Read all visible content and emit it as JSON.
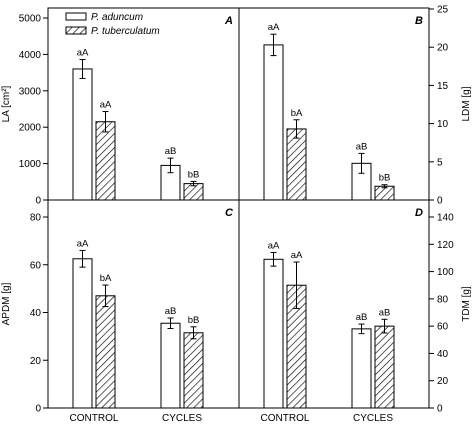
{
  "legend": {
    "open_label": "P. aduncum",
    "hatched_label": "P. tuberculatum"
  },
  "chart_data": [
    {
      "panel": "A",
      "type": "bar",
      "categories": [
        "CONTROL",
        "CYCLES"
      ],
      "ylabel": "LA [cm²]",
      "ylim": [
        0,
        5000
      ],
      "yticks": [
        0,
        1000,
        2000,
        3000,
        4000,
        5000
      ],
      "y_axis_side": "left",
      "series": [
        {
          "name": "P. aduncum",
          "values": [
            3600,
            950
          ],
          "errors": [
            260,
            200
          ],
          "labels": [
            "aA",
            "aB"
          ]
        },
        {
          "name": "P. tuberculatum",
          "values": [
            2150,
            450
          ],
          "errors": [
            280,
            60
          ],
          "labels": [
            "aA",
            "bB"
          ]
        }
      ]
    },
    {
      "panel": "B",
      "type": "bar",
      "categories": [
        "CONTROL",
        "CYCLES"
      ],
      "ylabel": "LDM [g]",
      "ylim": [
        0,
        25
      ],
      "yticks": [
        0,
        5,
        10,
        15,
        20,
        25
      ],
      "y_axis_side": "right",
      "series": [
        {
          "name": "P. aduncum",
          "values": [
            20.3,
            4.8
          ],
          "errors": [
            1.4,
            1.3
          ],
          "labels": [
            "aA",
            "aB"
          ]
        },
        {
          "name": "P. tuberculatum",
          "values": [
            9.3,
            1.8
          ],
          "errors": [
            1.2,
            0.2
          ],
          "labels": [
            "bA",
            "bB"
          ]
        }
      ]
    },
    {
      "panel": "C",
      "type": "bar",
      "categories": [
        "CONTROL",
        "CYCLES"
      ],
      "ylabel": "APDM [g]",
      "ylim": [
        0,
        80
      ],
      "yticks": [
        0,
        20,
        40,
        60,
        80
      ],
      "y_axis_side": "left",
      "series": [
        {
          "name": "P. aduncum",
          "values": [
            62.5,
            35.5
          ],
          "errors": [
            3.5,
            2.2
          ],
          "labels": [
            "aA",
            "aB"
          ]
        },
        {
          "name": "P. tuberculatum",
          "values": [
            47,
            31.5
          ],
          "errors": [
            4.5,
            2.5
          ],
          "labels": [
            "bA",
            "bB"
          ]
        }
      ]
    },
    {
      "panel": "D",
      "type": "bar",
      "categories": [
        "CONTROL",
        "CYCLES"
      ],
      "ylabel": "TDM [g]",
      "ylim": [
        0,
        140
      ],
      "yticks": [
        0,
        20,
        40,
        60,
        80,
        100,
        120,
        140
      ],
      "y_axis_side": "right",
      "series": [
        {
          "name": "P. aduncum",
          "values": [
            109,
            58
          ],
          "errors": [
            5,
            3.5
          ],
          "labels": [
            "aA",
            "aB"
          ]
        },
        {
          "name": "P. tuberculatum",
          "values": [
            90,
            60
          ],
          "errors": [
            17,
            5
          ],
          "labels": [
            "aA",
            "aB"
          ]
        }
      ]
    }
  ]
}
